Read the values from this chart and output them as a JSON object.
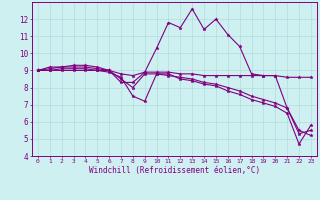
{
  "xlabel": "Windchill (Refroidissement éolien,°C)",
  "background_color": "#cff0f0",
  "line_color": "#800080",
  "grid_color": "#b0dede",
  "axis_color": "#800080",
  "xlim": [
    -0.5,
    23.5
  ],
  "ylim": [
    4,
    13
  ],
  "yticks": [
    4,
    5,
    6,
    7,
    8,
    9,
    10,
    11,
    12
  ],
  "xticks": [
    0,
    1,
    2,
    3,
    4,
    5,
    6,
    7,
    8,
    9,
    10,
    11,
    12,
    13,
    14,
    15,
    16,
    17,
    18,
    19,
    20,
    21,
    22,
    23
  ],
  "series": [
    {
      "x": [
        0,
        1,
        2,
        3,
        4,
        5,
        6,
        7,
        8,
        9,
        10,
        11,
        12,
        13,
        14,
        15,
        16,
        17,
        18,
        19,
        20,
        21,
        22,
        23
      ],
      "y": [
        9.0,
        9.2,
        9.2,
        9.3,
        9.3,
        9.2,
        9.0,
        8.3,
        8.3,
        8.9,
        10.3,
        11.8,
        11.5,
        12.6,
        11.4,
        12.0,
        11.1,
        10.4,
        8.8,
        8.7,
        8.7,
        6.8,
        5.3,
        5.5
      ]
    },
    {
      "x": [
        0,
        1,
        2,
        3,
        4,
        5,
        6,
        7,
        8,
        9,
        10,
        11,
        12,
        13,
        14,
        15,
        16,
        17,
        18,
        19,
        20,
        21,
        22,
        23
      ],
      "y": [
        9.0,
        9.1,
        9.2,
        9.2,
        9.2,
        9.1,
        9.0,
        8.8,
        8.7,
        8.9,
        8.9,
        8.9,
        8.8,
        8.8,
        8.7,
        8.7,
        8.7,
        8.7,
        8.7,
        8.7,
        8.7,
        8.6,
        8.6,
        8.6
      ]
    },
    {
      "x": [
        0,
        1,
        2,
        3,
        4,
        5,
        6,
        7,
        8,
        9,
        10,
        11,
        12,
        13,
        14,
        15,
        16,
        17,
        18,
        19,
        20,
        21,
        22,
        23
      ],
      "y": [
        9.0,
        9.0,
        9.1,
        9.1,
        9.1,
        9.0,
        8.9,
        8.6,
        7.5,
        7.2,
        8.8,
        8.8,
        8.5,
        8.4,
        8.2,
        8.1,
        7.8,
        7.6,
        7.3,
        7.1,
        6.9,
        6.5,
        4.7,
        5.8
      ]
    },
    {
      "x": [
        0,
        1,
        2,
        3,
        4,
        5,
        6,
        7,
        8,
        9,
        10,
        11,
        12,
        13,
        14,
        15,
        16,
        17,
        18,
        19,
        20,
        21,
        22,
        23
      ],
      "y": [
        9.0,
        9.0,
        9.0,
        9.0,
        9.0,
        9.0,
        9.0,
        8.5,
        8.0,
        8.8,
        8.8,
        8.7,
        8.6,
        8.5,
        8.3,
        8.2,
        8.0,
        7.8,
        7.5,
        7.3,
        7.1,
        6.8,
        5.5,
        5.2
      ]
    }
  ]
}
